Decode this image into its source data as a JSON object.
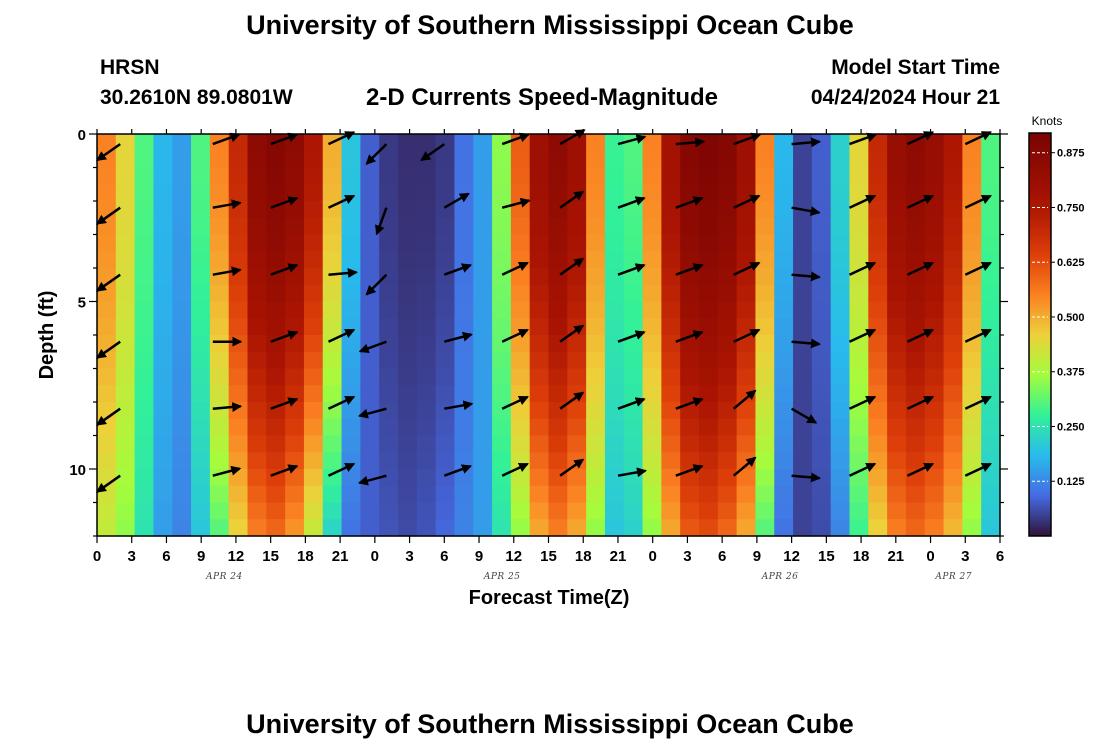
{
  "header": {
    "title": "University of Southern Mississippi Ocean Cube",
    "station": "HRSN",
    "coords": "30.2610N  89.0801W",
    "subtitle": "2-D Currents Speed-Magnitude",
    "model_start_label": "Model Start Time",
    "model_start_value": "04/24/2024 Hour 21"
  },
  "footer": {
    "title": "University of Southern Mississippi Ocean Cube"
  },
  "chart_data": {
    "type": "heatmap",
    "title": "2-D Currents Speed-Magnitude",
    "xlabel": "Forecast Time(Z)",
    "ylabel": "Depth (ft)",
    "x_tick_labels": [
      "0",
      "3",
      "6",
      "9",
      "12",
      "15",
      "18",
      "21",
      "0",
      "3",
      "6",
      "9",
      "12",
      "15",
      "18",
      "21",
      "0",
      "3",
      "6",
      "9",
      "12",
      "15",
      "18",
      "21",
      "0",
      "3",
      "6"
    ],
    "x_range_hours": [
      0,
      78
    ],
    "date_labels": [
      "APR 24",
      "APR 25",
      "APR 26",
      "APR 27"
    ],
    "date_label_hours": [
      11,
      35,
      59,
      74
    ],
    "y_tick_labels": [
      "0",
      "5",
      "10"
    ],
    "y_ticks": [
      0,
      5,
      10
    ],
    "y_range_ft": [
      0,
      12
    ],
    "y_inverted": true,
    "colorbar": {
      "unit": "Knots",
      "ticks": [
        0.125,
        0.25,
        0.375,
        0.5,
        0.625,
        0.75,
        0.875
      ],
      "tick_labels": [
        "0.125",
        "0.250",
        "0.375",
        "0.500",
        "0.625",
        "0.750",
        "0.875"
      ],
      "range": [
        0,
        0.92
      ],
      "colormap": "turbo"
    },
    "speed_profile_surface": [
      0.55,
      0.45,
      0.3,
      0.18,
      0.15,
      0.3,
      0.55,
      0.7,
      0.85,
      0.88,
      0.85,
      0.75,
      0.5,
      0.2,
      0.08,
      0.04,
      0.03,
      0.03,
      0.04,
      0.1,
      0.15,
      0.35,
      0.6,
      0.8,
      0.85,
      0.8,
      0.55,
      0.28,
      0.3,
      0.55,
      0.78,
      0.88,
      0.9,
      0.88,
      0.8,
      0.55,
      0.18,
      0.05,
      0.08,
      0.22,
      0.45,
      0.7,
      0.82,
      0.85,
      0.82,
      0.75,
      0.55,
      0.3
    ],
    "speed_profile_bottom": [
      0.4,
      0.35,
      0.25,
      0.15,
      0.12,
      0.2,
      0.3,
      0.45,
      0.55,
      0.58,
      0.52,
      0.4,
      0.22,
      0.1,
      0.08,
      0.07,
      0.06,
      0.07,
      0.09,
      0.12,
      0.15,
      0.25,
      0.35,
      0.5,
      0.55,
      0.5,
      0.35,
      0.2,
      0.22,
      0.35,
      0.5,
      0.6,
      0.62,
      0.58,
      0.5,
      0.3,
      0.1,
      0.05,
      0.06,
      0.12,
      0.28,
      0.45,
      0.55,
      0.58,
      0.55,
      0.48,
      0.35,
      0.2
    ],
    "depth_bins_ft": [
      0,
      0.5,
      1,
      1.5,
      2,
      2.5,
      3,
      3.5,
      4,
      4.5,
      5,
      5.5,
      6,
      6.5,
      7,
      7.5,
      8,
      8.5,
      9,
      9.5,
      10,
      10.5,
      11,
      11.5
    ],
    "vector_hours": [
      2,
      10,
      15,
      20,
      25,
      30,
      35,
      40,
      45,
      50,
      55,
      60,
      65,
      70,
      75
    ],
    "vector_depths_ft": [
      0.3,
      2.2,
      4.2,
      6.2,
      8.2,
      10.2
    ],
    "vector_directions_deg": [
      [
        215,
        215,
        215,
        215,
        215,
        215
      ],
      [
        20,
        10,
        10,
        0,
        5,
        15
      ],
      [
        20,
        20,
        20,
        20,
        20,
        20
      ],
      [
        25,
        25,
        5,
        25,
        25,
        25
      ],
      [
        225,
        250,
        225,
        200,
        195,
        195
      ],
      [
        215,
        30,
        20,
        15,
        10,
        20
      ],
      [
        20,
        15,
        25,
        25,
        25,
        25
      ],
      [
        30,
        35,
        35,
        35,
        35,
        35
      ],
      [
        15,
        20,
        20,
        20,
        20,
        10
      ],
      [
        5,
        20,
        20,
        20,
        20,
        20
      ],
      [
        20,
        25,
        25,
        25,
        40,
        40
      ],
      [
        5,
        350,
        355,
        355,
        330,
        355
      ],
      [
        20,
        25,
        25,
        25,
        25,
        25
      ],
      [
        25,
        25,
        25,
        25,
        25,
        25
      ],
      [
        25,
        25,
        25,
        25,
        25,
        25
      ]
    ]
  }
}
